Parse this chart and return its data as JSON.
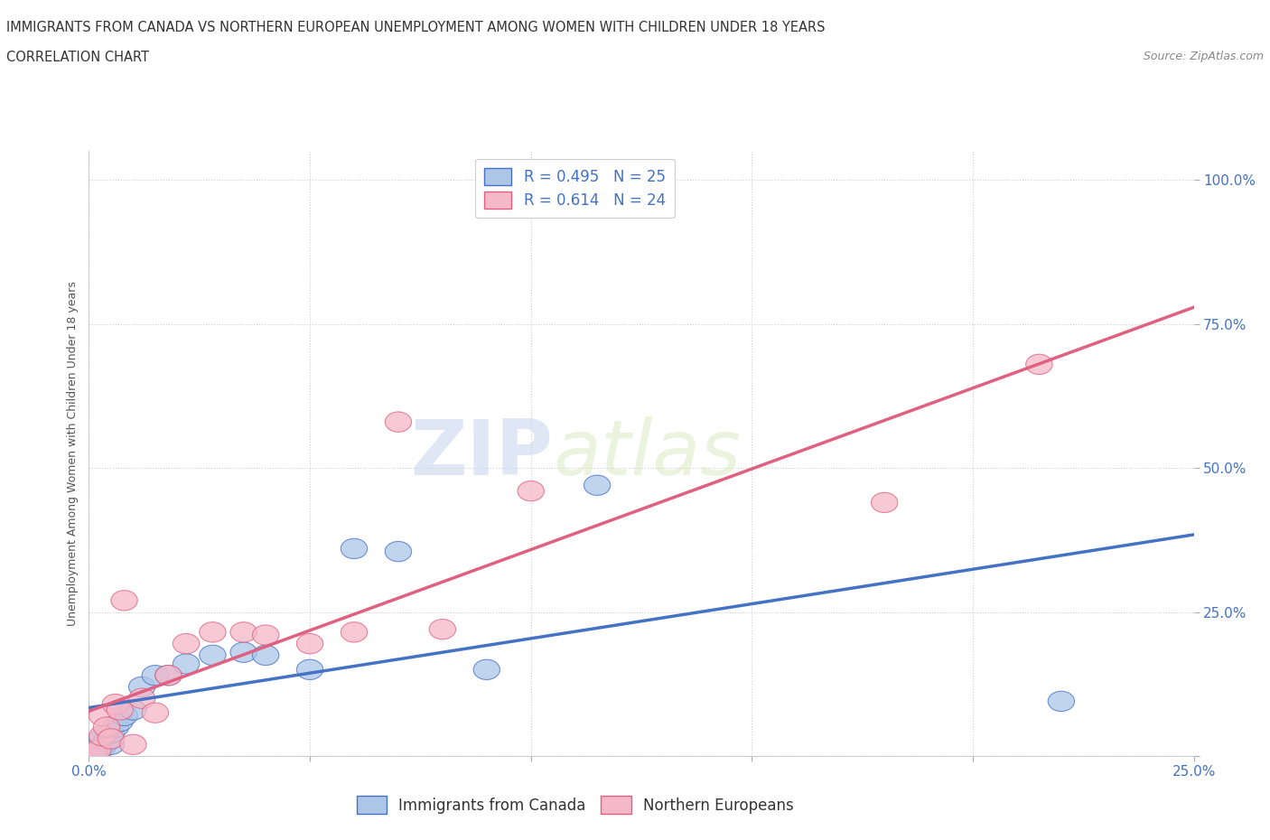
{
  "title": "IMMIGRANTS FROM CANADA VS NORTHERN EUROPEAN UNEMPLOYMENT AMONG WOMEN WITH CHILDREN UNDER 18 YEARS",
  "subtitle": "CORRELATION CHART",
  "source": "Source: ZipAtlas.com",
  "xlim": [
    0.0,
    0.25
  ],
  "ylim": [
    0.0,
    1.05
  ],
  "ylabel": "Unemployment Among Women with Children Under 18 years",
  "legend1_label": "Immigrants from Canada",
  "legend2_label": "Northern Europeans",
  "R1": 0.495,
  "N1": 25,
  "R2": 0.614,
  "N2": 24,
  "color_blue": "#adc6e8",
  "color_pink": "#f5b8c8",
  "line_blue": "#4472c4",
  "line_pink": "#e06080",
  "watermark_zip": "ZIP",
  "watermark_atlas": "atlas",
  "blue_points": [
    [
      0.001,
      0.005
    ],
    [
      0.002,
      0.01
    ],
    [
      0.002,
      0.02
    ],
    [
      0.003,
      0.015
    ],
    [
      0.003,
      0.03
    ],
    [
      0.004,
      0.025
    ],
    [
      0.005,
      0.02
    ],
    [
      0.005,
      0.04
    ],
    [
      0.006,
      0.05
    ],
    [
      0.007,
      0.06
    ],
    [
      0.008,
      0.07
    ],
    [
      0.01,
      0.08
    ],
    [
      0.012,
      0.12
    ],
    [
      0.015,
      0.14
    ],
    [
      0.018,
      0.14
    ],
    [
      0.022,
      0.16
    ],
    [
      0.028,
      0.175
    ],
    [
      0.035,
      0.18
    ],
    [
      0.04,
      0.175
    ],
    [
      0.05,
      0.15
    ],
    [
      0.06,
      0.36
    ],
    [
      0.07,
      0.355
    ],
    [
      0.09,
      0.15
    ],
    [
      0.115,
      0.47
    ],
    [
      0.22,
      0.095
    ]
  ],
  "pink_points": [
    [
      0.001,
      0.005
    ],
    [
      0.002,
      0.01
    ],
    [
      0.003,
      0.035
    ],
    [
      0.003,
      0.07
    ],
    [
      0.004,
      0.05
    ],
    [
      0.005,
      0.03
    ],
    [
      0.006,
      0.09
    ],
    [
      0.007,
      0.08
    ],
    [
      0.008,
      0.27
    ],
    [
      0.01,
      0.02
    ],
    [
      0.012,
      0.1
    ],
    [
      0.015,
      0.075
    ],
    [
      0.018,
      0.14
    ],
    [
      0.022,
      0.195
    ],
    [
      0.028,
      0.215
    ],
    [
      0.035,
      0.215
    ],
    [
      0.04,
      0.21
    ],
    [
      0.05,
      0.195
    ],
    [
      0.06,
      0.215
    ],
    [
      0.07,
      0.58
    ],
    [
      0.08,
      0.22
    ],
    [
      0.1,
      0.46
    ],
    [
      0.18,
      0.44
    ],
    [
      0.215,
      0.68
    ]
  ],
  "background_color": "#ffffff",
  "grid_color": "#cccccc",
  "title_fontsize": 10.5,
  "subtitle_fontsize": 10.5,
  "tick_fontsize": 11,
  "ylabel_fontsize": 9,
  "legend_fontsize": 12,
  "source_fontsize": 9
}
